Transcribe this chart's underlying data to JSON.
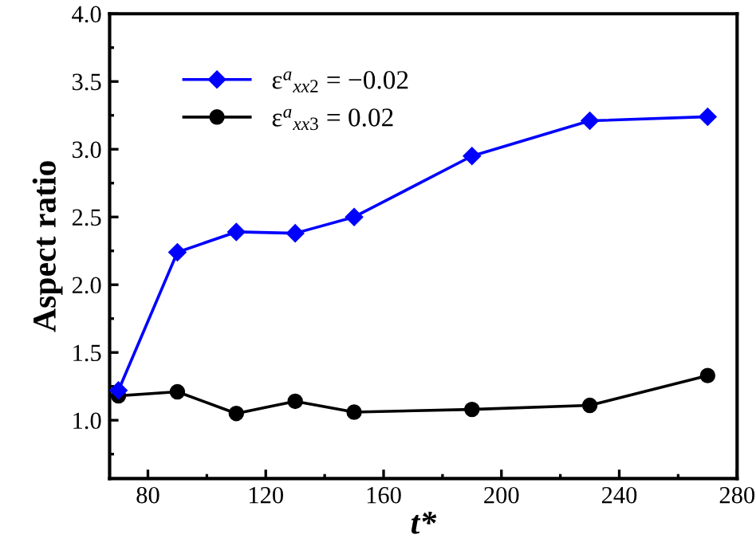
{
  "chart_data": {
    "type": "line",
    "xlabel": "t*",
    "ylabel": "Aspect ratio",
    "x": [
      70,
      90,
      110,
      130,
      150,
      190,
      230,
      270
    ],
    "series": [
      {
        "name": "ε$^{a}$$_{xx2}$ = −0.02",
        "color": "#0000ff",
        "marker": "diamond",
        "values": [
          1.22,
          2.24,
          2.39,
          2.38,
          2.5,
          2.95,
          3.21,
          3.24
        ]
      },
      {
        "name": "ε$^{a}$$_{xx3}$ = 0.02",
        "color": "#000000",
        "marker": "circle",
        "values": [
          1.18,
          1.21,
          1.05,
          1.14,
          1.06,
          1.08,
          1.11,
          1.33
        ]
      }
    ],
    "xlim": [
      67,
      280
    ],
    "xticks": [
      80,
      120,
      160,
      200,
      240,
      280
    ],
    "ylim": [
      0.57,
      4.0
    ],
    "yticks": [
      {
        "value": 1.0,
        "label": "1.0"
      },
      {
        "value": 1.5,
        "label": "1.5"
      },
      {
        "value": 2.0,
        "label": "2.0"
      },
      {
        "value": 2.5,
        "label": "2.5"
      },
      {
        "value": 3.0,
        "label": "3.0"
      },
      {
        "value": 3.5,
        "label": "3.5"
      },
      {
        "value": 4.0,
        "label": "4.0"
      }
    ],
    "legend": "top left",
    "grid": false,
    "line_style": "solid"
  }
}
